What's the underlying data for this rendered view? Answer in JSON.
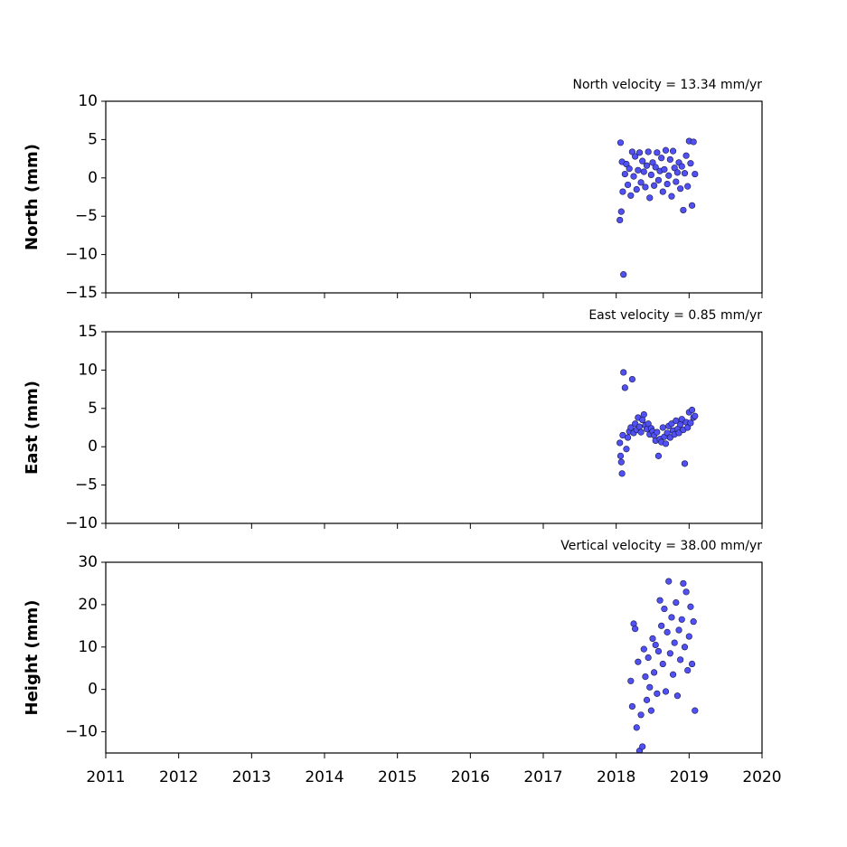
{
  "chart_data": [
    {
      "type": "scatter",
      "title": "North velocity = 13.34 mm/yr",
      "ylabel": "North (mm)",
      "xlim": [
        2011,
        2020
      ],
      "xticks": [
        2011,
        2012,
        2013,
        2014,
        2015,
        2016,
        2017,
        2018,
        2019,
        2020
      ],
      "show_xtick_labels": false,
      "ylim": [
        -15,
        10
      ],
      "yticks": [
        {
          "value": -15,
          "label": "−15"
        },
        {
          "value": -10,
          "label": "−10"
        },
        {
          "value": -5,
          "label": "−5"
        },
        0,
        5,
        10
      ],
      "color": "#5050f5",
      "edgecolor": "#1a1a4a",
      "x": [
        2018.05,
        2018.06,
        2018.07,
        2018.08,
        2018.09,
        2018.1,
        2018.12,
        2018.14,
        2018.16,
        2018.18,
        2018.2,
        2018.22,
        2018.24,
        2018.26,
        2018.28,
        2018.3,
        2018.32,
        2018.34,
        2018.36,
        2018.38,
        2018.4,
        2018.42,
        2018.44,
        2018.46,
        2018.48,
        2018.5,
        2018.52,
        2018.54,
        2018.56,
        2018.58,
        2018.6,
        2018.62,
        2018.64,
        2018.66,
        2018.68,
        2018.7,
        2018.72,
        2018.74,
        2018.76,
        2018.78,
        2018.8,
        2018.82,
        2018.84,
        2018.86,
        2018.88,
        2018.9,
        2018.92,
        2018.94,
        2018.96,
        2018.98,
        2019.0,
        2019.02,
        2019.04,
        2019.06,
        2019.08
      ],
      "values": [
        -5.5,
        4.6,
        -4.4,
        2.1,
        -1.8,
        -12.6,
        0.5,
        1.8,
        -0.9,
        1.2,
        -2.3,
        3.4,
        0.2,
        2.8,
        -1.5,
        1.0,
        3.3,
        -0.6,
        2.2,
        0.8,
        -1.2,
        1.6,
        3.4,
        -2.6,
        0.4,
        2.0,
        -1.0,
        1.4,
        3.3,
        -0.3,
        0.9,
        2.6,
        -1.8,
        1.1,
        3.6,
        -0.8,
        0.3,
        2.4,
        -2.4,
        3.5,
        1.3,
        -0.5,
        0.7,
        2.0,
        -1.4,
        1.5,
        -4.2,
        0.6,
        2.9,
        -1.1,
        4.8,
        1.9,
        -3.6,
        4.7,
        0.5
      ]
    },
    {
      "type": "scatter",
      "title": "East velocity = 0.85 mm/yr",
      "ylabel": "East (mm)",
      "xlim": [
        2011,
        2020
      ],
      "xticks": [
        2011,
        2012,
        2013,
        2014,
        2015,
        2016,
        2017,
        2018,
        2019,
        2020
      ],
      "show_xtick_labels": false,
      "ylim": [
        -10,
        15
      ],
      "yticks": [
        {
          "value": -10,
          "label": "−10"
        },
        {
          "value": -5,
          "label": "−5"
        },
        0,
        5,
        10,
        15
      ],
      "color": "#5050f5",
      "edgecolor": "#1a1a4a",
      "x": [
        2018.05,
        2018.06,
        2018.07,
        2018.08,
        2018.09,
        2018.1,
        2018.12,
        2018.14,
        2018.16,
        2018.18,
        2018.2,
        2018.22,
        2018.24,
        2018.26,
        2018.28,
        2018.3,
        2018.32,
        2018.34,
        2018.36,
        2018.38,
        2018.4,
        2018.42,
        2018.44,
        2018.46,
        2018.48,
        2018.5,
        2018.52,
        2018.54,
        2018.56,
        2018.58,
        2018.6,
        2018.62,
        2018.64,
        2018.66,
        2018.68,
        2018.7,
        2018.72,
        2018.74,
        2018.76,
        2018.78,
        2018.8,
        2018.82,
        2018.84,
        2018.86,
        2018.88,
        2018.9,
        2018.92,
        2018.94,
        2018.96,
        2018.98,
        2019.0,
        2019.02,
        2019.04,
        2019.06,
        2019.08
      ],
      "values": [
        0.5,
        -1.2,
        -2.0,
        -3.5,
        1.5,
        9.7,
        7.7,
        -0.3,
        1.2,
        2.0,
        2.5,
        8.8,
        1.8,
        3.0,
        2.2,
        3.8,
        2.6,
        1.9,
        3.5,
        4.2,
        2.8,
        2.3,
        3.0,
        1.6,
        2.4,
        2.0,
        1.5,
        0.8,
        1.9,
        -1.2,
        1.0,
        0.6,
        2.5,
        1.3,
        0.4,
        1.8,
        2.7,
        1.2,
        3.0,
        2.1,
        1.6,
        3.4,
        2.3,
        1.8,
        2.9,
        3.6,
        2.2,
        -2.2,
        3.2,
        2.5,
        4.5,
        3.1,
        4.8,
        3.8,
        4.0
      ]
    },
    {
      "type": "scatter",
      "title": "Vertical velocity = 38.00 mm/yr",
      "ylabel": "Height (mm)",
      "xlim": [
        2011,
        2020
      ],
      "xticks": [
        2011,
        2012,
        2013,
        2014,
        2015,
        2016,
        2017,
        2018,
        2019,
        2020
      ],
      "show_xtick_labels": true,
      "ylim": [
        -15,
        30
      ],
      "yticks": [
        {
          "value": -10,
          "label": "−10"
        },
        0,
        10,
        20,
        30
      ],
      "color": "#5050f5",
      "edgecolor": "#1a1a4a",
      "x": [
        2018.2,
        2018.22,
        2018.24,
        2018.26,
        2018.28,
        2018.3,
        2018.32,
        2018.34,
        2018.36,
        2018.38,
        2018.4,
        2018.42,
        2018.44,
        2018.46,
        2018.48,
        2018.5,
        2018.52,
        2018.54,
        2018.56,
        2018.58,
        2018.6,
        2018.62,
        2018.64,
        2018.66,
        2018.68,
        2018.7,
        2018.72,
        2018.74,
        2018.76,
        2018.78,
        2018.8,
        2018.82,
        2018.84,
        2018.86,
        2018.88,
        2018.9,
        2018.92,
        2018.94,
        2018.96,
        2018.98,
        2019.0,
        2019.02,
        2019.04,
        2019.06,
        2019.08
      ],
      "values": [
        2.0,
        -4.0,
        15.5,
        14.3,
        -9.0,
        6.5,
        -14.5,
        -6.0,
        -13.5,
        9.5,
        3.0,
        -2.5,
        7.5,
        0.5,
        -5.0,
        12.0,
        4.0,
        10.5,
        -1.0,
        9.0,
        21.0,
        15.0,
        6.0,
        19.0,
        -0.5,
        13.5,
        25.5,
        8.5,
        17.0,
        3.5,
        11.0,
        20.5,
        -1.5,
        14.0,
        7.0,
        16.5,
        25.0,
        10.0,
        23.0,
        4.5,
        12.5,
        19.5,
        6.0,
        16.0,
        -5.0
      ]
    }
  ]
}
